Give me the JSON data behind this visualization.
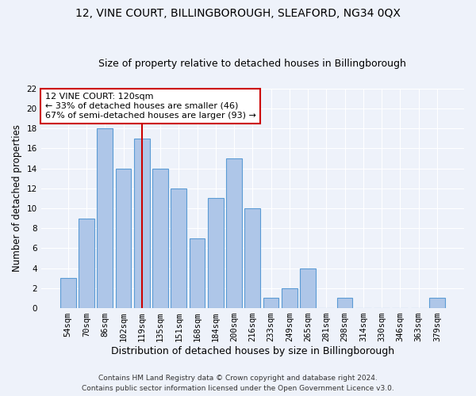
{
  "title1": "12, VINE COURT, BILLINGBOROUGH, SLEAFORD, NG34 0QX",
  "title2": "Size of property relative to detached houses in Billingborough",
  "xlabel": "Distribution of detached houses by size in Billingborough",
  "ylabel": "Number of detached properties",
  "bar_labels": [
    "54sqm",
    "70sqm",
    "86sqm",
    "102sqm",
    "119sqm",
    "135sqm",
    "151sqm",
    "168sqm",
    "184sqm",
    "200sqm",
    "216sqm",
    "233sqm",
    "249sqm",
    "265sqm",
    "281sqm",
    "298sqm",
    "314sqm",
    "330sqm",
    "346sqm",
    "363sqm",
    "379sqm"
  ],
  "bar_values": [
    3,
    9,
    18,
    14,
    17,
    14,
    12,
    7,
    11,
    15,
    10,
    1,
    2,
    4,
    0,
    1,
    0,
    0,
    0,
    0,
    1
  ],
  "bar_color": "#aec6e8",
  "bar_edge_color": "#5b9bd5",
  "vline_x": 4,
  "vline_color": "#cc0000",
  "annotation_text": "12 VINE COURT: 120sqm\n← 33% of detached houses are smaller (46)\n67% of semi-detached houses are larger (93) →",
  "annotation_box_color": "#ffffff",
  "annotation_box_edge_color": "#cc0000",
  "ylim": [
    0,
    22
  ],
  "yticks": [
    0,
    2,
    4,
    6,
    8,
    10,
    12,
    14,
    16,
    18,
    20,
    22
  ],
  "footer1": "Contains HM Land Registry data © Crown copyright and database right 2024.",
  "footer2": "Contains public sector information licensed under the Open Government Licence v3.0.",
  "background_color": "#eef2fa",
  "grid_color": "#ffffff",
  "title1_fontsize": 10,
  "title2_fontsize": 9,
  "xlabel_fontsize": 9,
  "ylabel_fontsize": 8.5,
  "tick_fontsize": 7.5,
  "annotation_fontsize": 8,
  "footer_fontsize": 6.5
}
